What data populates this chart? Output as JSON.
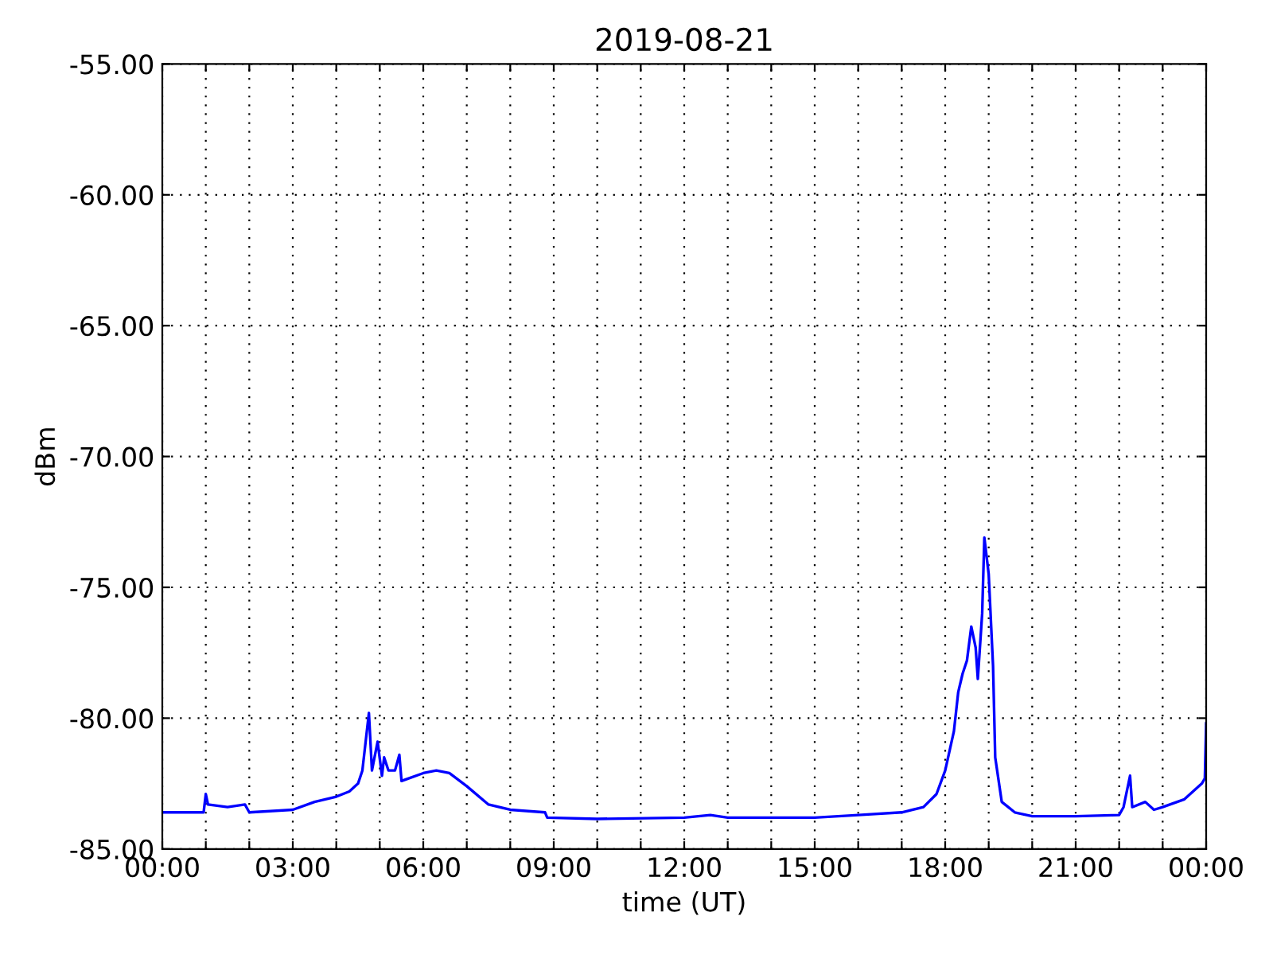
{
  "chart_data": {
    "type": "line",
    "title": "2019-08-21",
    "xlabel": "time (UT)",
    "ylabel": "dBm",
    "x": [
      0,
      0.5,
      0.95,
      1.0,
      1.05,
      1.5,
      1.9,
      2.0,
      3.0,
      3.5,
      4.0,
      4.3,
      4.5,
      4.6,
      4.75,
      4.82,
      4.95,
      5.05,
      5.1,
      5.2,
      5.35,
      5.45,
      5.5,
      6.0,
      6.3,
      6.6,
      7.0,
      7.5,
      8.0,
      8.8,
      8.85,
      10,
      12,
      12.6,
      13,
      15,
      16,
      17,
      17.5,
      17.8,
      18.0,
      18.2,
      18.3,
      18.4,
      18.5,
      18.6,
      18.7,
      18.75,
      18.85,
      18.9,
      19.0,
      19.1,
      19.15,
      19.3,
      19.6,
      20,
      21,
      22,
      22.1,
      22.25,
      22.3,
      22.6,
      22.8,
      23.0,
      23.5,
      23.9,
      23.97,
      24
    ],
    "series": [
      {
        "color": "#0000ff",
        "values": [
          -83.6,
          -83.6,
          -83.6,
          -82.9,
          -83.3,
          -83.4,
          -83.3,
          -83.6,
          -83.5,
          -83.2,
          -83.0,
          -82.8,
          -82.5,
          -82.0,
          -79.8,
          -82.0,
          -80.9,
          -82.2,
          -81.5,
          -82.0,
          -82.0,
          -81.4,
          -82.4,
          -82.1,
          -82.0,
          -82.1,
          -82.6,
          -83.3,
          -83.5,
          -83.6,
          -83.8,
          -83.85,
          -83.8,
          -83.7,
          -83.8,
          -83.8,
          -83.7,
          -83.6,
          -83.4,
          -82.9,
          -82.0,
          -80.5,
          -79.0,
          -78.3,
          -77.8,
          -76.5,
          -77.3,
          -78.5,
          -76.0,
          -73.1,
          -74.5,
          -78.0,
          -81.5,
          -83.2,
          -83.6,
          -83.75,
          -83.75,
          -83.7,
          -83.4,
          -82.2,
          -83.4,
          -83.2,
          -83.5,
          -83.4,
          -83.1,
          -82.5,
          -82.3,
          -80.2
        ]
      }
    ],
    "xlim": [
      0,
      24
    ],
    "xticks": [
      {
        "value": 0,
        "label": "00:00"
      },
      {
        "value": 1,
        "label": null
      },
      {
        "value": 2,
        "label": null
      },
      {
        "value": 3,
        "label": "03:00"
      },
      {
        "value": 4,
        "label": null
      },
      {
        "value": 5,
        "label": null
      },
      {
        "value": 6,
        "label": "06:00"
      },
      {
        "value": 7,
        "label": null
      },
      {
        "value": 8,
        "label": null
      },
      {
        "value": 9,
        "label": "09:00"
      },
      {
        "value": 10,
        "label": null
      },
      {
        "value": 11,
        "label": null
      },
      {
        "value": 12,
        "label": "12:00"
      },
      {
        "value": 13,
        "label": null
      },
      {
        "value": 14,
        "label": null
      },
      {
        "value": 15,
        "label": "15:00"
      },
      {
        "value": 16,
        "label": null
      },
      {
        "value": 17,
        "label": null
      },
      {
        "value": 18,
        "label": "18:00"
      },
      {
        "value": 19,
        "label": null
      },
      {
        "value": 20,
        "label": null
      },
      {
        "value": 21,
        "label": "21:00"
      },
      {
        "value": 22,
        "label": null
      },
      {
        "value": 23,
        "label": null
      },
      {
        "value": 24,
        "label": "00:00"
      }
    ],
    "ylim": [
      -85,
      -55
    ],
    "yticks": [
      {
        "value": -85,
        "label": "-85.00"
      },
      {
        "value": -80,
        "label": "-80.00"
      },
      {
        "value": -75,
        "label": "-75.00"
      },
      {
        "value": -70,
        "label": "-70.00"
      },
      {
        "value": -65,
        "label": "-65.00"
      },
      {
        "value": -60,
        "label": "-60.00"
      },
      {
        "value": -55,
        "label": "-55.00"
      }
    ],
    "grid": true,
    "line_style": "solid",
    "marker": "none"
  }
}
